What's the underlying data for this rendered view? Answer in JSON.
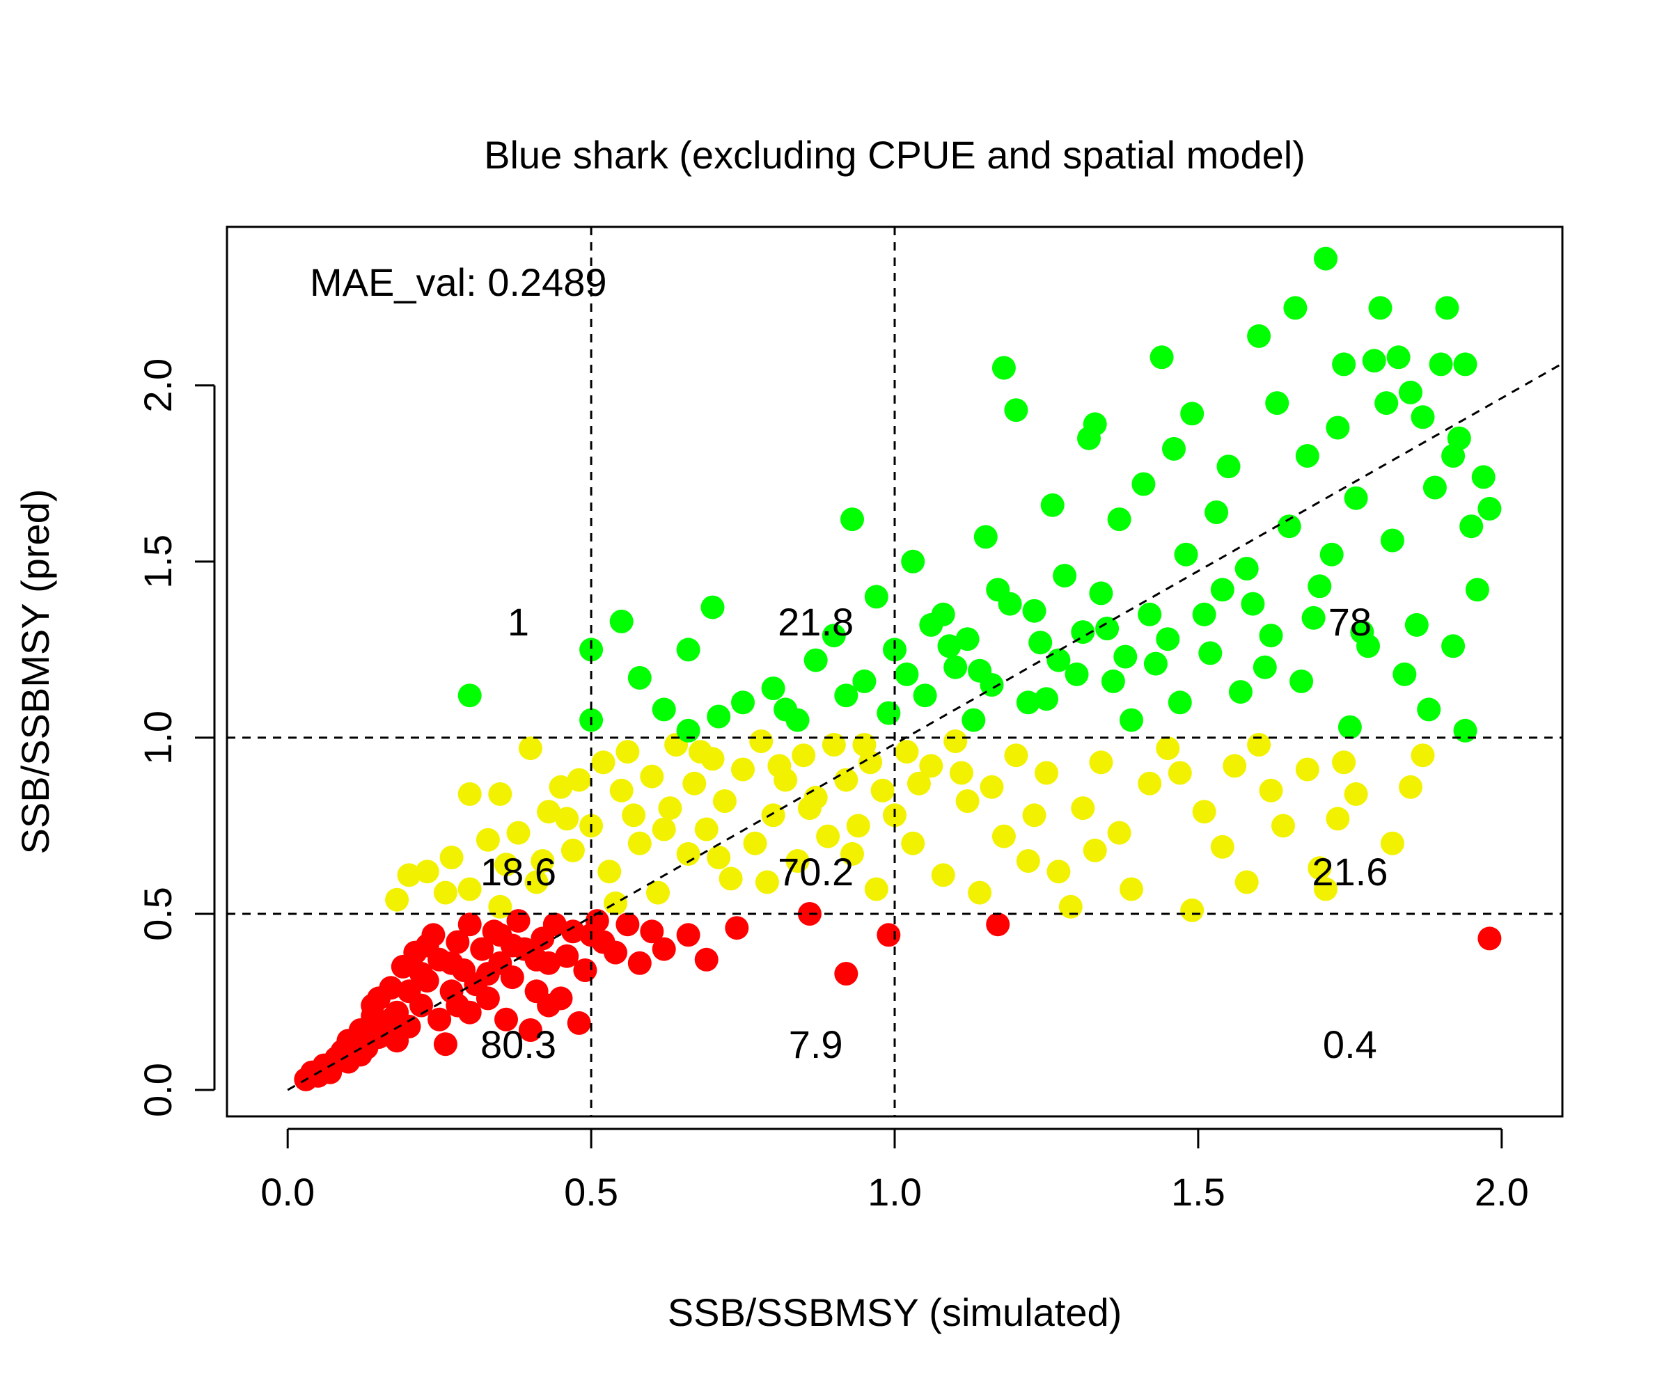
{
  "chart_data": {
    "type": "scatter",
    "title": "Blue shark (excluding CPUE and spatial model)",
    "xlabel": "SSB/SSBMSY (simulated)",
    "ylabel": "SSB/SSBMSY (pred)",
    "xlim": [
      -0.1,
      2.1
    ],
    "ylim": [
      -0.075,
      2.45
    ],
    "x_ticks": [
      "0.0",
      "0.5",
      "1.0",
      "1.5",
      "2.0"
    ],
    "y_ticks": [
      "0.0",
      "0.5",
      "1.0",
      "1.5",
      "2.0"
    ],
    "grid": false,
    "reference_lines": {
      "vertical": [
        0.5,
        1.0
      ],
      "horizontal": [
        0.5,
        1.0
      ],
      "diagonal": "1:1"
    },
    "annotation": "MAE_val: 0.2489",
    "colors": {
      "pred_below_0_5": "#ff0000",
      "pred_0_5_to_1": "#f2f200",
      "pred_above_1": "#00ff00"
    },
    "cell_percentages": [
      {
        "label": "1",
        "x": 0.38,
        "y": 1.33
      },
      {
        "label": "21.8",
        "x": 0.87,
        "y": 1.33
      },
      {
        "label": "78",
        "x": 1.75,
        "y": 1.33
      },
      {
        "label": "18.6",
        "x": 0.38,
        "y": 0.62
      },
      {
        "label": "70.2",
        "x": 0.87,
        "y": 0.62
      },
      {
        "label": "21.6",
        "x": 1.75,
        "y": 0.62
      },
      {
        "label": "80.3",
        "x": 0.38,
        "y": 0.13
      },
      {
        "label": "7.9",
        "x": 0.87,
        "y": 0.13
      },
      {
        "label": "0.4",
        "x": 1.75,
        "y": 0.13
      }
    ],
    "series": [
      {
        "color": "#ff0000",
        "points": [
          [
            0.03,
            0.03
          ],
          [
            0.04,
            0.05
          ],
          [
            0.05,
            0.04
          ],
          [
            0.06,
            0.07
          ],
          [
            0.07,
            0.05
          ],
          [
            0.08,
            0.09
          ],
          [
            0.09,
            0.11
          ],
          [
            0.1,
            0.08
          ],
          [
            0.1,
            0.14
          ],
          [
            0.12,
            0.1
          ],
          [
            0.12,
            0.17
          ],
          [
            0.13,
            0.12
          ],
          [
            0.14,
            0.21
          ],
          [
            0.15,
            0.15
          ],
          [
            0.15,
            0.26
          ],
          [
            0.16,
            0.19
          ],
          [
            0.17,
            0.29
          ],
          [
            0.18,
            0.14
          ],
          [
            0.18,
            0.22
          ],
          [
            0.19,
            0.35
          ],
          [
            0.2,
            0.18
          ],
          [
            0.2,
            0.28
          ],
          [
            0.21,
            0.39
          ],
          [
            0.22,
            0.24
          ],
          [
            0.23,
            0.31
          ],
          [
            0.24,
            0.44
          ],
          [
            0.25,
            0.2
          ],
          [
            0.25,
            0.37
          ],
          [
            0.26,
            0.13
          ],
          [
            0.27,
            0.28
          ],
          [
            0.28,
            0.42
          ],
          [
            0.29,
            0.34
          ],
          [
            0.3,
            0.47
          ],
          [
            0.3,
            0.22
          ],
          [
            0.31,
            0.3
          ],
          [
            0.32,
            0.4
          ],
          [
            0.33,
            0.26
          ],
          [
            0.34,
            0.45
          ],
          [
            0.35,
            0.36
          ],
          [
            0.36,
            0.2
          ],
          [
            0.37,
            0.32
          ],
          [
            0.38,
            0.48
          ],
          [
            0.39,
            0.4
          ],
          [
            0.4,
            0.17
          ],
          [
            0.41,
            0.28
          ],
          [
            0.42,
            0.43
          ],
          [
            0.43,
            0.36
          ],
          [
            0.44,
            0.47
          ],
          [
            0.45,
            0.26
          ],
          [
            0.46,
            0.38
          ],
          [
            0.47,
            0.45
          ],
          [
            0.48,
            0.19
          ],
          [
            0.49,
            0.34
          ],
          [
            0.5,
            0.44
          ],
          [
            0.51,
            0.48
          ],
          [
            0.52,
            0.42
          ],
          [
            0.54,
            0.39
          ],
          [
            0.56,
            0.47
          ],
          [
            0.58,
            0.36
          ],
          [
            0.6,
            0.45
          ],
          [
            0.62,
            0.4
          ],
          [
            0.66,
            0.44
          ],
          [
            0.69,
            0.37
          ],
          [
            0.74,
            0.46
          ],
          [
            0.86,
            0.5
          ],
          [
            0.92,
            0.33
          ],
          [
            0.99,
            0.44
          ],
          [
            1.17,
            0.47
          ],
          [
            1.98,
            0.43
          ],
          [
            0.22,
            0.33
          ],
          [
            0.27,
            0.36
          ],
          [
            0.33,
            0.33
          ],
          [
            0.37,
            0.41
          ],
          [
            0.41,
            0.37
          ],
          [
            0.14,
            0.24
          ],
          [
            0.17,
            0.2
          ],
          [
            0.43,
            0.24
          ],
          [
            0.35,
            0.44
          ],
          [
            0.28,
            0.24
          ],
          [
            0.23,
            0.41
          ]
        ]
      },
      {
        "color": "#f2f200",
        "points": [
          [
            0.18,
            0.54
          ],
          [
            0.2,
            0.61
          ],
          [
            0.23,
            0.62
          ],
          [
            0.27,
            0.66
          ],
          [
            0.3,
            0.84
          ],
          [
            0.3,
            0.57
          ],
          [
            0.33,
            0.71
          ],
          [
            0.35,
            0.84
          ],
          [
            0.36,
            0.64
          ],
          [
            0.38,
            0.73
          ],
          [
            0.4,
            0.97
          ],
          [
            0.41,
            0.59
          ],
          [
            0.43,
            0.79
          ],
          [
            0.45,
            0.86
          ],
          [
            0.47,
            0.68
          ],
          [
            0.48,
            0.88
          ],
          [
            0.5,
            0.75
          ],
          [
            0.52,
            0.93
          ],
          [
            0.53,
            0.62
          ],
          [
            0.55,
            0.85
          ],
          [
            0.56,
            0.96
          ],
          [
            0.58,
            0.7
          ],
          [
            0.6,
            0.89
          ],
          [
            0.61,
            0.56
          ],
          [
            0.63,
            0.8
          ],
          [
            0.64,
            0.98
          ],
          [
            0.66,
            0.67
          ],
          [
            0.67,
            0.87
          ],
          [
            0.69,
            0.74
          ],
          [
            0.7,
            0.94
          ],
          [
            0.72,
            0.82
          ],
          [
            0.73,
            0.6
          ],
          [
            0.75,
            0.91
          ],
          [
            0.77,
            0.7
          ],
          [
            0.78,
            0.99
          ],
          [
            0.8,
            0.78
          ],
          [
            0.82,
            0.88
          ],
          [
            0.84,
            0.65
          ],
          [
            0.85,
            0.95
          ],
          [
            0.87,
            0.83
          ],
          [
            0.89,
            0.72
          ],
          [
            0.9,
            0.98
          ],
          [
            0.92,
            0.88
          ],
          [
            0.94,
            0.75
          ],
          [
            0.96,
            0.93
          ],
          [
            0.98,
            0.85
          ],
          [
            1.0,
            0.78
          ],
          [
            1.02,
            0.96
          ],
          [
            1.04,
            0.87
          ],
          [
            1.06,
            0.92
          ],
          [
            1.08,
            0.61
          ],
          [
            1.1,
            0.99
          ],
          [
            1.12,
            0.82
          ],
          [
            1.14,
            0.56
          ],
          [
            1.16,
            0.86
          ],
          [
            1.18,
            0.72
          ],
          [
            1.2,
            0.95
          ],
          [
            1.22,
            0.65
          ],
          [
            1.25,
            0.9
          ],
          [
            1.27,
            0.62
          ],
          [
            1.29,
            0.52
          ],
          [
            1.31,
            0.8
          ],
          [
            1.34,
            0.93
          ],
          [
            1.37,
            0.73
          ],
          [
            1.39,
            0.57
          ],
          [
            1.42,
            0.87
          ],
          [
            1.45,
            0.97
          ],
          [
            1.49,
            0.51
          ],
          [
            1.51,
            0.79
          ],
          [
            1.54,
            0.69
          ],
          [
            1.56,
            0.92
          ],
          [
            1.58,
            0.59
          ],
          [
            1.6,
            0.98
          ],
          [
            1.64,
            0.75
          ],
          [
            1.68,
            0.91
          ],
          [
            1.7,
            0.63
          ],
          [
            1.71,
            0.57
          ],
          [
            1.73,
            0.77
          ],
          [
            1.76,
            0.84
          ],
          [
            1.82,
            0.7
          ],
          [
            1.85,
            0.86
          ],
          [
            1.87,
            0.95
          ],
          [
            0.26,
            0.56
          ],
          [
            0.42,
            0.65
          ],
          [
            0.54,
            0.53
          ],
          [
            0.62,
            0.74
          ],
          [
            0.71,
            0.66
          ],
          [
            0.79,
            0.59
          ],
          [
            0.86,
            0.8
          ],
          [
            0.93,
            0.67
          ],
          [
            0.97,
            0.57
          ],
          [
            1.03,
            0.7
          ],
          [
            1.11,
            0.9
          ],
          [
            1.23,
            0.78
          ],
          [
            1.33,
            0.68
          ],
          [
            1.47,
            0.9
          ],
          [
            1.62,
            0.85
          ],
          [
            1.74,
            0.93
          ],
          [
            0.35,
            0.52
          ],
          [
            0.46,
            0.77
          ],
          [
            0.57,
            0.78
          ],
          [
            0.68,
            0.96
          ],
          [
            0.81,
            0.92
          ],
          [
            0.95,
            0.98
          ]
        ]
      },
      {
        "color": "#00ff00",
        "points": [
          [
            0.3,
            1.12
          ],
          [
            0.5,
            1.25
          ],
          [
            0.5,
            1.05
          ],
          [
            0.55,
            1.33
          ],
          [
            0.58,
            1.17
          ],
          [
            0.62,
            1.08
          ],
          [
            0.66,
            1.25
          ],
          [
            0.66,
            1.02
          ],
          [
            0.7,
            1.37
          ],
          [
            0.71,
            1.06
          ],
          [
            0.75,
            1.1
          ],
          [
            0.8,
            1.14
          ],
          [
            0.84,
            1.05
          ],
          [
            0.87,
            1.22
          ],
          [
            0.9,
            1.29
          ],
          [
            0.93,
            1.62
          ],
          [
            0.95,
            1.16
          ],
          [
            0.97,
            1.4
          ],
          [
            0.99,
            1.07
          ],
          [
            1.0,
            1.25
          ],
          [
            1.03,
            1.5
          ],
          [
            1.05,
            1.12
          ],
          [
            1.08,
            1.35
          ],
          [
            1.1,
            1.2
          ],
          [
            1.13,
            1.05
          ],
          [
            1.15,
            1.57
          ],
          [
            1.17,
            1.42
          ],
          [
            1.18,
            2.05
          ],
          [
            1.2,
            1.93
          ],
          [
            1.22,
            1.1
          ],
          [
            1.24,
            1.27
          ],
          [
            1.26,
            1.66
          ],
          [
            1.28,
            1.46
          ],
          [
            1.3,
            1.18
          ],
          [
            1.32,
            1.85
          ],
          [
            1.33,
            1.89
          ],
          [
            1.35,
            1.31
          ],
          [
            1.37,
            1.62
          ],
          [
            1.39,
            1.05
          ],
          [
            1.41,
            1.72
          ],
          [
            1.43,
            1.21
          ],
          [
            1.44,
            2.08
          ],
          [
            1.46,
            1.82
          ],
          [
            1.48,
            1.52
          ],
          [
            1.49,
            1.92
          ],
          [
            1.51,
            1.35
          ],
          [
            1.53,
            1.64
          ],
          [
            1.55,
            1.77
          ],
          [
            1.57,
            1.13
          ],
          [
            1.58,
            1.48
          ],
          [
            1.6,
            2.14
          ],
          [
            1.62,
            1.29
          ],
          [
            1.63,
            1.95
          ],
          [
            1.65,
            1.6
          ],
          [
            1.66,
            2.22
          ],
          [
            1.68,
            1.8
          ],
          [
            1.7,
            1.43
          ],
          [
            1.71,
            2.36
          ],
          [
            1.73,
            1.88
          ],
          [
            1.74,
            2.06
          ],
          [
            1.75,
            1.03
          ],
          [
            1.76,
            1.68
          ],
          [
            1.78,
            1.26
          ],
          [
            1.79,
            2.07
          ],
          [
            1.8,
            2.22
          ],
          [
            1.81,
            1.95
          ],
          [
            1.82,
            1.56
          ],
          [
            1.83,
            2.08
          ],
          [
            1.84,
            1.18
          ],
          [
            1.85,
            1.98
          ],
          [
            1.86,
            1.32
          ],
          [
            1.87,
            1.91
          ],
          [
            1.88,
            1.08
          ],
          [
            1.89,
            1.71
          ],
          [
            1.9,
            2.06
          ],
          [
            1.91,
            2.22
          ],
          [
            1.92,
            1.8
          ],
          [
            1.92,
            1.26
          ],
          [
            1.93,
            1.85
          ],
          [
            1.94,
            2.06
          ],
          [
            1.95,
            1.6
          ],
          [
            1.96,
            1.42
          ],
          [
            1.97,
            1.74
          ],
          [
            1.98,
            1.65
          ],
          [
            1.94,
            1.02
          ],
          [
            1.06,
            1.32
          ],
          [
            1.12,
            1.28
          ],
          [
            1.19,
            1.38
          ],
          [
            1.27,
            1.22
          ],
          [
            1.36,
            1.16
          ],
          [
            1.42,
            1.35
          ],
          [
            1.52,
            1.24
          ],
          [
            1.59,
            1.38
          ],
          [
            1.67,
            1.16
          ],
          [
            1.72,
            1.52
          ],
          [
            1.02,
            1.18
          ],
          [
            1.09,
            1.26
          ],
          [
            1.16,
            1.15
          ],
          [
            1.23,
            1.36
          ],
          [
            1.31,
            1.3
          ],
          [
            1.38,
            1.23
          ],
          [
            1.47,
            1.1
          ],
          [
            1.54,
            1.42
          ],
          [
            1.61,
            1.2
          ],
          [
            1.69,
            1.34
          ],
          [
            1.77,
            1.3
          ],
          [
            0.82,
            1.08
          ],
          [
            0.92,
            1.12
          ],
          [
            1.14,
            1.19
          ],
          [
            1.25,
            1.11
          ],
          [
            1.34,
            1.41
          ],
          [
            1.45,
            1.28
          ]
        ]
      }
    ]
  }
}
